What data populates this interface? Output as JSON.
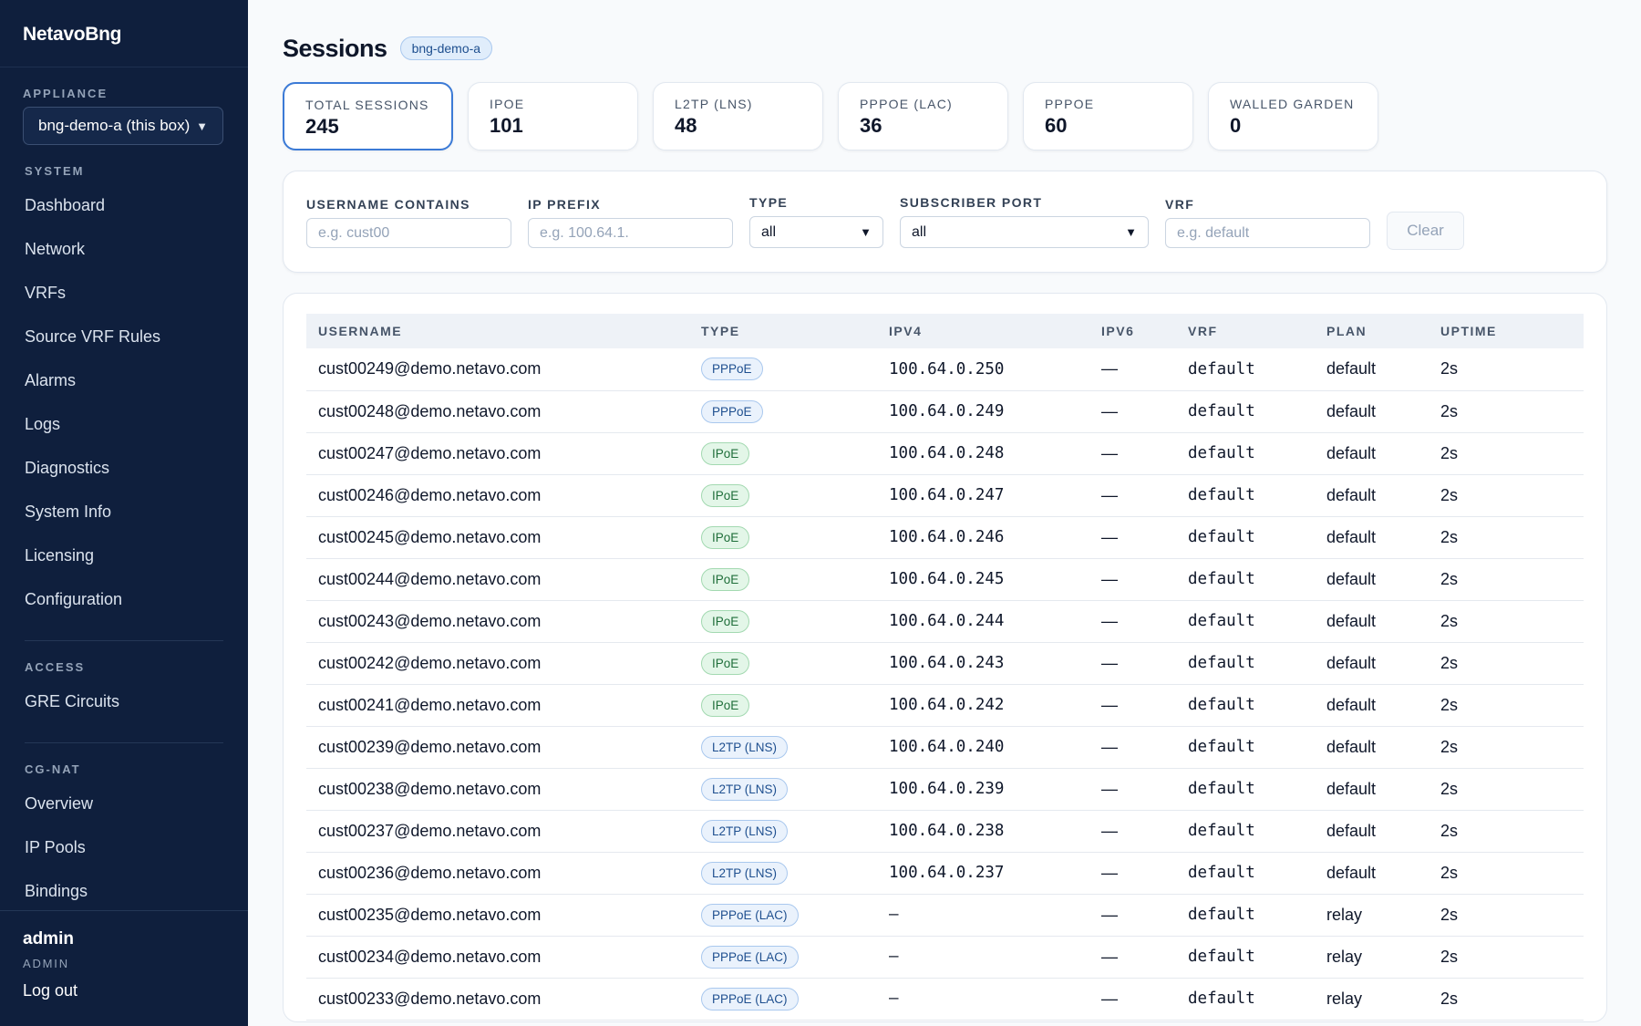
{
  "brand": "NetavoBng",
  "appliance": {
    "label": "APPLIANCE",
    "selected": "bng-demo-a (this box)"
  },
  "nav": {
    "system_label": "SYSTEM",
    "system_items": [
      "Dashboard",
      "Network",
      "VRFs",
      "Source VRF Rules",
      "Alarms",
      "Logs",
      "Diagnostics",
      "System Info",
      "Licensing",
      "Configuration"
    ],
    "access_label": "ACCESS",
    "access_items": [
      "GRE Circuits"
    ],
    "cgnat_label": "CG-NAT",
    "cgnat_items": [
      "Overview",
      "IP Pools",
      "Bindings"
    ]
  },
  "user": {
    "name": "admin",
    "role": "ADMIN",
    "logout": "Log out"
  },
  "page": {
    "title": "Sessions",
    "appliance_badge": "bng-demo-a"
  },
  "stats": [
    {
      "label": "TOTAL SESSIONS",
      "value": "245"
    },
    {
      "label": "IPOE",
      "value": "101"
    },
    {
      "label": "L2TP (LNS)",
      "value": "48"
    },
    {
      "label": "PPPOE (LAC)",
      "value": "36"
    },
    {
      "label": "PPPOE",
      "value": "60"
    },
    {
      "label": "WALLED GARDEN",
      "value": "0"
    }
  ],
  "filters": {
    "username": {
      "label": "USERNAME CONTAINS",
      "placeholder": "e.g. cust00"
    },
    "ip_prefix": {
      "label": "IP PREFIX",
      "placeholder": "e.g. 100.64.1."
    },
    "type": {
      "label": "TYPE",
      "value": "all"
    },
    "subscriber_port": {
      "label": "SUBSCRIBER PORT",
      "value": "all"
    },
    "vrf": {
      "label": "VRF",
      "placeholder": "e.g. default"
    },
    "clear_label": "Clear"
  },
  "table": {
    "columns": [
      "USERNAME",
      "TYPE",
      "IPV4",
      "IPV6",
      "VRF",
      "PLAN",
      "UPTIME"
    ],
    "rows": [
      {
        "username": "cust00249@demo.netavo.com",
        "type": "PPPoE",
        "ipv4": "100.64.0.250",
        "ipv6": "—",
        "vrf": "default",
        "plan": "default",
        "uptime": "2s"
      },
      {
        "username": "cust00248@demo.netavo.com",
        "type": "PPPoE",
        "ipv4": "100.64.0.249",
        "ipv6": "—",
        "vrf": "default",
        "plan": "default",
        "uptime": "2s"
      },
      {
        "username": "cust00247@demo.netavo.com",
        "type": "IPoE",
        "ipv4": "100.64.0.248",
        "ipv6": "—",
        "vrf": "default",
        "plan": "default",
        "uptime": "2s"
      },
      {
        "username": "cust00246@demo.netavo.com",
        "type": "IPoE",
        "ipv4": "100.64.0.247",
        "ipv6": "—",
        "vrf": "default",
        "plan": "default",
        "uptime": "2s"
      },
      {
        "username": "cust00245@demo.netavo.com",
        "type": "IPoE",
        "ipv4": "100.64.0.246",
        "ipv6": "—",
        "vrf": "default",
        "plan": "default",
        "uptime": "2s"
      },
      {
        "username": "cust00244@demo.netavo.com",
        "type": "IPoE",
        "ipv4": "100.64.0.245",
        "ipv6": "—",
        "vrf": "default",
        "plan": "default",
        "uptime": "2s"
      },
      {
        "username": "cust00243@demo.netavo.com",
        "type": "IPoE",
        "ipv4": "100.64.0.244",
        "ipv6": "—",
        "vrf": "default",
        "plan": "default",
        "uptime": "2s"
      },
      {
        "username": "cust00242@demo.netavo.com",
        "type": "IPoE",
        "ipv4": "100.64.0.243",
        "ipv6": "—",
        "vrf": "default",
        "plan": "default",
        "uptime": "2s"
      },
      {
        "username": "cust00241@demo.netavo.com",
        "type": "IPoE",
        "ipv4": "100.64.0.242",
        "ipv6": "—",
        "vrf": "default",
        "plan": "default",
        "uptime": "2s"
      },
      {
        "username": "cust00239@demo.netavo.com",
        "type": "L2TP (LNS)",
        "ipv4": "100.64.0.240",
        "ipv6": "—",
        "vrf": "default",
        "plan": "default",
        "uptime": "2s"
      },
      {
        "username": "cust00238@demo.netavo.com",
        "type": "L2TP (LNS)",
        "ipv4": "100.64.0.239",
        "ipv6": "—",
        "vrf": "default",
        "plan": "default",
        "uptime": "2s"
      },
      {
        "username": "cust00237@demo.netavo.com",
        "type": "L2TP (LNS)",
        "ipv4": "100.64.0.238",
        "ipv6": "—",
        "vrf": "default",
        "plan": "default",
        "uptime": "2s"
      },
      {
        "username": "cust00236@demo.netavo.com",
        "type": "L2TP (LNS)",
        "ipv4": "100.64.0.237",
        "ipv6": "—",
        "vrf": "default",
        "plan": "default",
        "uptime": "2s"
      },
      {
        "username": "cust00235@demo.netavo.com",
        "type": "PPPoE (LAC)",
        "ipv4": "—",
        "ipv6": "—",
        "vrf": "default",
        "plan": "relay",
        "uptime": "2s"
      },
      {
        "username": "cust00234@demo.netavo.com",
        "type": "PPPoE (LAC)",
        "ipv4": "—",
        "ipv6": "—",
        "vrf": "default",
        "plan": "relay",
        "uptime": "2s"
      },
      {
        "username": "cust00233@demo.netavo.com",
        "type": "PPPoE (LAC)",
        "ipv4": "—",
        "ipv6": "—",
        "vrf": "default",
        "plan": "relay",
        "uptime": "2s"
      }
    ]
  }
}
